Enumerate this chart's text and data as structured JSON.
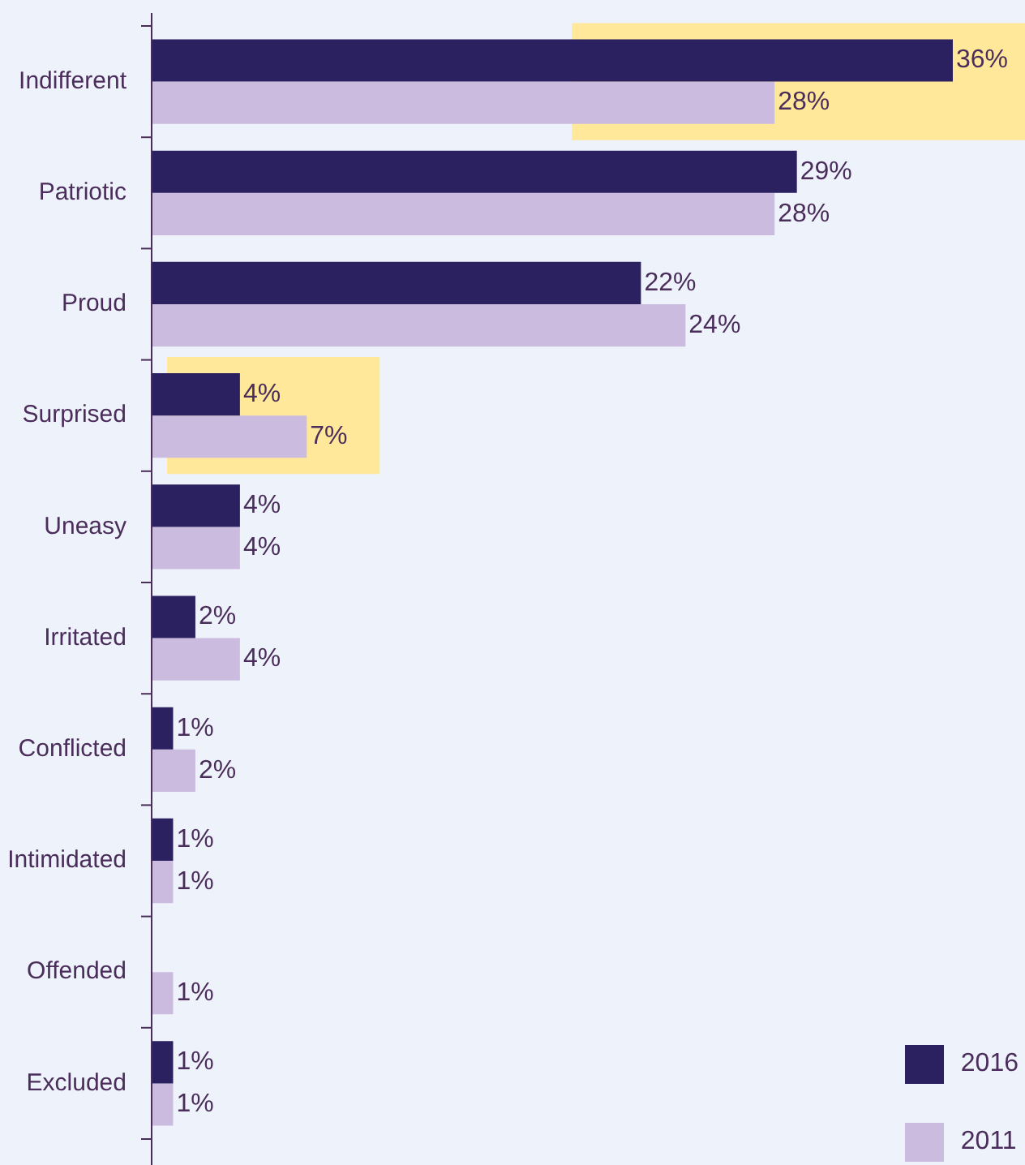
{
  "chart_data": {
    "type": "bar",
    "orientation": "horizontal",
    "categories": [
      "Indifferent",
      "Patriotic",
      "Proud",
      "Surprised",
      "Uneasy",
      "Irritated",
      "Conflicted",
      "Intimidated",
      "Offended",
      "Excluded"
    ],
    "series": [
      {
        "name": "2016",
        "color": "#2b2160",
        "values": [
          36,
          29,
          22,
          4,
          4,
          2,
          1,
          1,
          null,
          1
        ],
        "value_labels": [
          "36%",
          "29%",
          "22%",
          "4%",
          "4%",
          "2%",
          "1%",
          "1%",
          null,
          "1%"
        ]
      },
      {
        "name": "2011",
        "color": "#cbbcdf",
        "values": [
          28,
          28,
          24,
          7,
          4,
          4,
          2,
          1,
          1,
          1
        ],
        "value_labels": [
          "28%",
          "28%",
          "24%",
          "7%",
          "4%",
          "4%",
          "2%",
          "1%",
          "1%",
          "1%"
        ]
      }
    ],
    "tick_labels": "y",
    "bands": [
      {
        "axis": "y",
        "from": "Indifferent",
        "to": "Indifferent",
        "color": "#ffe89a"
      },
      {
        "axis": "y",
        "from": "Surprised",
        "to": "Surprised",
        "color": "#ffe89a"
      }
    ],
    "legend": "bottom right"
  }
}
